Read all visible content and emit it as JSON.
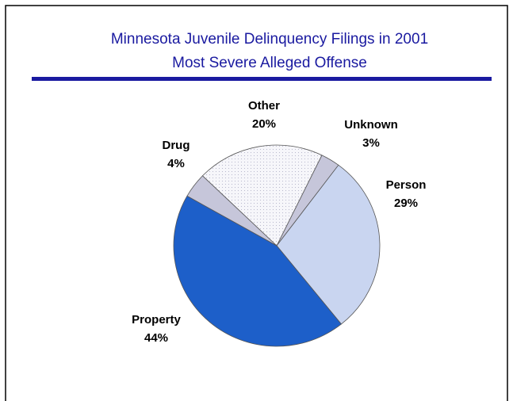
{
  "chart_data": {
    "type": "pie",
    "title": "Minnesota Juvenile Delinquency Filings in 2001",
    "subtitle": "Most Severe Alleged Offense",
    "categories": [
      "Unknown",
      "Person",
      "Property",
      "Drug",
      "Other"
    ],
    "values": [
      3,
      29,
      44,
      4,
      20
    ],
    "value_labels": [
      "3%",
      "29%",
      "44%",
      "4%",
      "20%"
    ],
    "colors": [
      "#c6c6da",
      "#c9d5f0",
      "#1d5fc9",
      "#c6c6da",
      "#f3f3f7"
    ]
  }
}
